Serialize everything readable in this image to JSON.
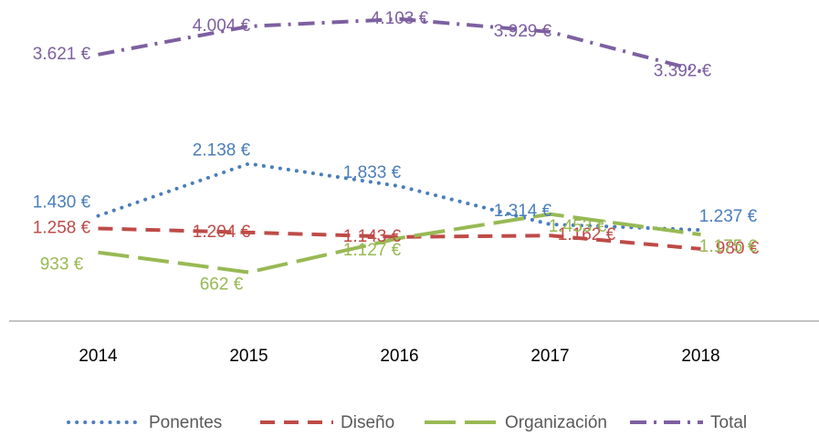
{
  "chart_data": {
    "type": "line",
    "categories": [
      "2014",
      "2015",
      "2016",
      "2017",
      "2018"
    ],
    "ylim": [
      0,
      4300
    ],
    "series": [
      {
        "name": "Ponentes",
        "color": "#4a7ebb",
        "values": [
          1430,
          2138,
          1833,
          1314,
          1237
        ],
        "value_labels": [
          "1.430 €",
          "2.138 €",
          "1.833 €",
          "1.314 €",
          "1.237 €"
        ]
      },
      {
        "name": "Diseño",
        "color": "#be4b48",
        "values": [
          1258,
          1204,
          1143,
          1162,
          980
        ],
        "value_labels": [
          "1.258 €",
          "1.204 €",
          "1.143 €",
          "1.162 €",
          "980 €"
        ]
      },
      {
        "name": "Organización",
        "color": "#98b954",
        "values": [
          933,
          662,
          1127,
          1453,
          1175
        ],
        "value_labels": [
          "933 €",
          "662 €",
          "1.127 €",
          "1.453 €",
          "1.175 €"
        ]
      },
      {
        "name": "Total",
        "color": "#7d60a0",
        "values": [
          3621,
          4004,
          4103,
          3929,
          3392
        ],
        "value_labels": [
          "3.621 €",
          "4.004 €",
          "4.103 €",
          "3.929 €",
          "3.392 €"
        ]
      }
    ]
  }
}
